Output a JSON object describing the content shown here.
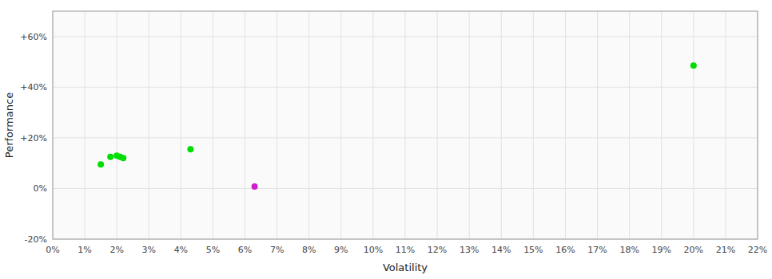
{
  "chart_data": {
    "type": "scatter",
    "x_label": "Volatility",
    "y_label": "Performance",
    "xlim": [
      0.0,
      0.22
    ],
    "ylim": [
      -0.2,
      0.7
    ],
    "xticks": [
      {
        "value": 0.0,
        "label": "0%"
      },
      {
        "value": 0.01,
        "label": "1%"
      },
      {
        "value": 0.02,
        "label": "2%"
      },
      {
        "value": 0.03,
        "label": "3%"
      },
      {
        "value": 0.04,
        "label": "4%"
      },
      {
        "value": 0.05,
        "label": "5%"
      },
      {
        "value": 0.06,
        "label": "6%"
      },
      {
        "value": 0.07,
        "label": "7%"
      },
      {
        "value": 0.08,
        "label": "8%"
      },
      {
        "value": 0.09,
        "label": "9%"
      },
      {
        "value": 0.1,
        "label": "10%"
      },
      {
        "value": 0.11,
        "label": "11%"
      },
      {
        "value": 0.12,
        "label": "12%"
      },
      {
        "value": 0.13,
        "label": "13%"
      },
      {
        "value": 0.14,
        "label": "14%"
      },
      {
        "value": 0.15,
        "label": "15%"
      },
      {
        "value": 0.16,
        "label": "16%"
      },
      {
        "value": 0.17,
        "label": "17%"
      },
      {
        "value": 0.18,
        "label": "18%"
      },
      {
        "value": 0.19,
        "label": "19%"
      },
      {
        "value": 0.2,
        "label": "20%"
      },
      {
        "value": 0.21,
        "label": "21%"
      },
      {
        "value": 0.22,
        "label": "22%"
      }
    ],
    "yticks": [
      {
        "value": -0.2,
        "label": "-20%"
      },
      {
        "value": 0.0,
        "label": "0%"
      },
      {
        "value": 0.2,
        "label": "+20%"
      },
      {
        "value": 0.4,
        "label": "+40%"
      },
      {
        "value": 0.6,
        "label": "+60%"
      }
    ],
    "grid": true,
    "series": [
      {
        "color": "#00dd00",
        "x": [
          0.015,
          0.018,
          0.02,
          0.021,
          0.022,
          0.043,
          0.2
        ],
        "values": [
          0.095,
          0.125,
          0.13,
          0.125,
          0.12,
          0.155,
          0.485
        ]
      },
      {
        "color": "#cc22cc",
        "x": [
          0.063
        ],
        "values": [
          0.008
        ]
      }
    ]
  }
}
